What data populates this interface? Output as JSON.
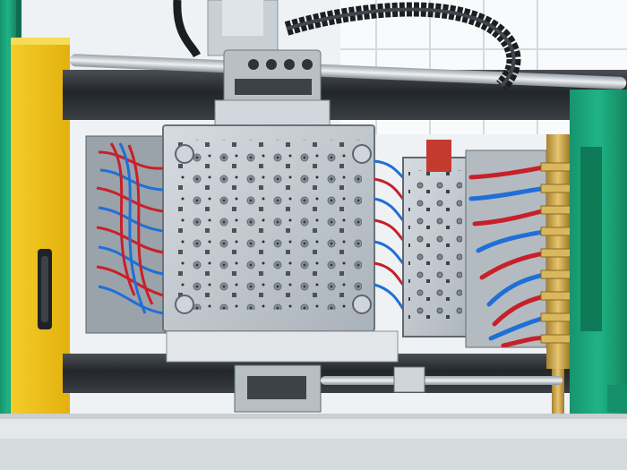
{
  "scene": {
    "subject": "injection-molding-machine",
    "colors": {
      "frame_green": "#1aa37a",
      "guard_yellow": "#f2c318",
      "mold_steel": "#c4cbd1",
      "hose_red": "#c8202a",
      "hose_blue": "#1f6fd6",
      "tie_bar_dark": "#2b2f33",
      "brass": "#c9a24a"
    }
  }
}
